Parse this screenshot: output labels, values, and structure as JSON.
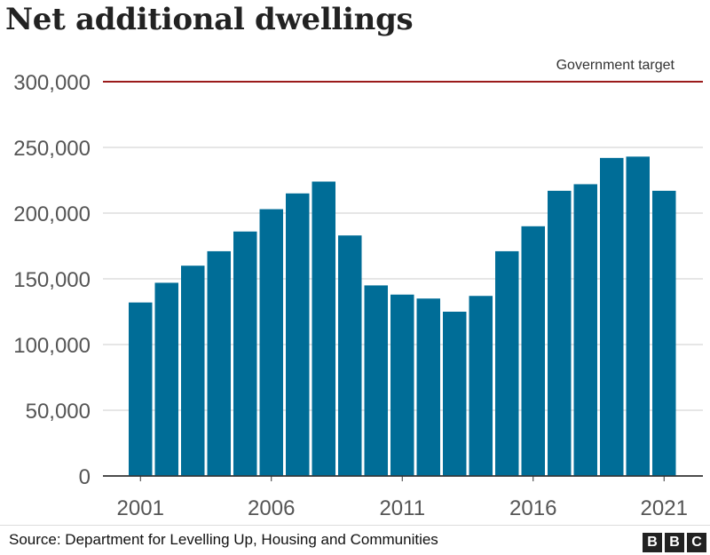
{
  "chart_data": {
    "type": "bar",
    "title": "Net additional dwellings",
    "categories": [
      "2001",
      "2002",
      "2003",
      "2004",
      "2005",
      "2006",
      "2007",
      "2008",
      "2009",
      "2010",
      "2011",
      "2012",
      "2013",
      "2014",
      "2015",
      "2016",
      "2017",
      "2018",
      "2019",
      "2020",
      "2021"
    ],
    "values": [
      132000,
      147000,
      160000,
      171000,
      186000,
      203000,
      215000,
      224000,
      183000,
      145000,
      138000,
      135000,
      125000,
      137000,
      171000,
      190000,
      217000,
      222000,
      242000,
      243000,
      217000
    ],
    "x_tick_labels": [
      "2001",
      "2006",
      "2011",
      "2016",
      "2021"
    ],
    "y_ticks": [
      0,
      50000,
      100000,
      150000,
      200000,
      250000,
      300000
    ],
    "y_tick_labels": [
      "0",
      "50,000",
      "100,000",
      "150,000",
      "200,000",
      "250,000",
      "300,000"
    ],
    "ylim": [
      0,
      300000
    ],
    "xlabel": "",
    "ylabel": "",
    "grid": true,
    "reference_line": {
      "label": "Government target",
      "value": 300000,
      "color": "#9b1b1b"
    },
    "bar_color": "#006d97"
  },
  "footer": {
    "source": "Source: Department for Levelling Up, Housing and Communities",
    "logo": [
      "B",
      "B",
      "C"
    ]
  }
}
